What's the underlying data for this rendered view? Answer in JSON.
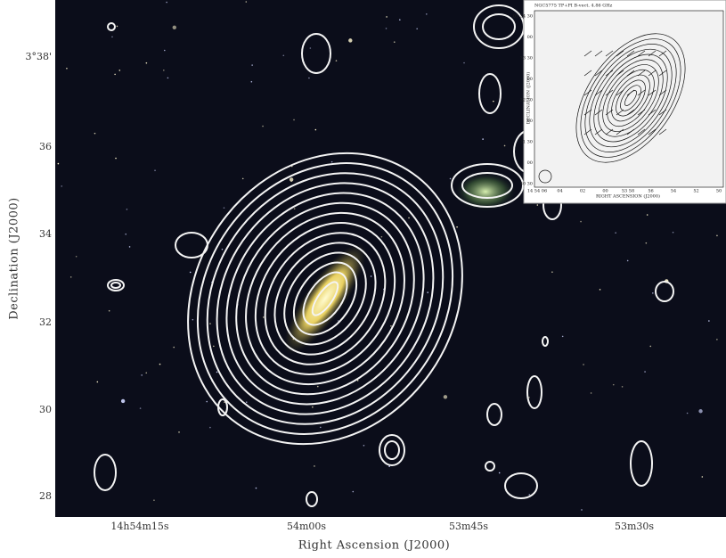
{
  "main": {
    "x_label": "Right Ascension (J2000)",
    "y_label": "Declination (J2000)",
    "x_ticks": [
      "14h54m15s",
      "54m00s",
      "53m45s",
      "53m30s"
    ],
    "y_ticks": [
      "3°38'",
      "36",
      "34",
      "32",
      "30",
      "28"
    ]
  },
  "inset": {
    "title": "NGC5775 TP+PI B-vect. 4.86 GHz",
    "x_label": "RIGHT ASCENSION (J2000)",
    "y_label": "DECLINATION (J2000)",
    "x_ticks": [
      "14 54 06",
      "04",
      "02",
      "00",
      "53 58",
      "56",
      "54",
      "52",
      "50"
    ],
    "y_ticks": [
      "03 34 30",
      "00",
      "33 30",
      "00",
      "32 30",
      "00",
      "31 30",
      "00",
      "30 30"
    ]
  }
}
